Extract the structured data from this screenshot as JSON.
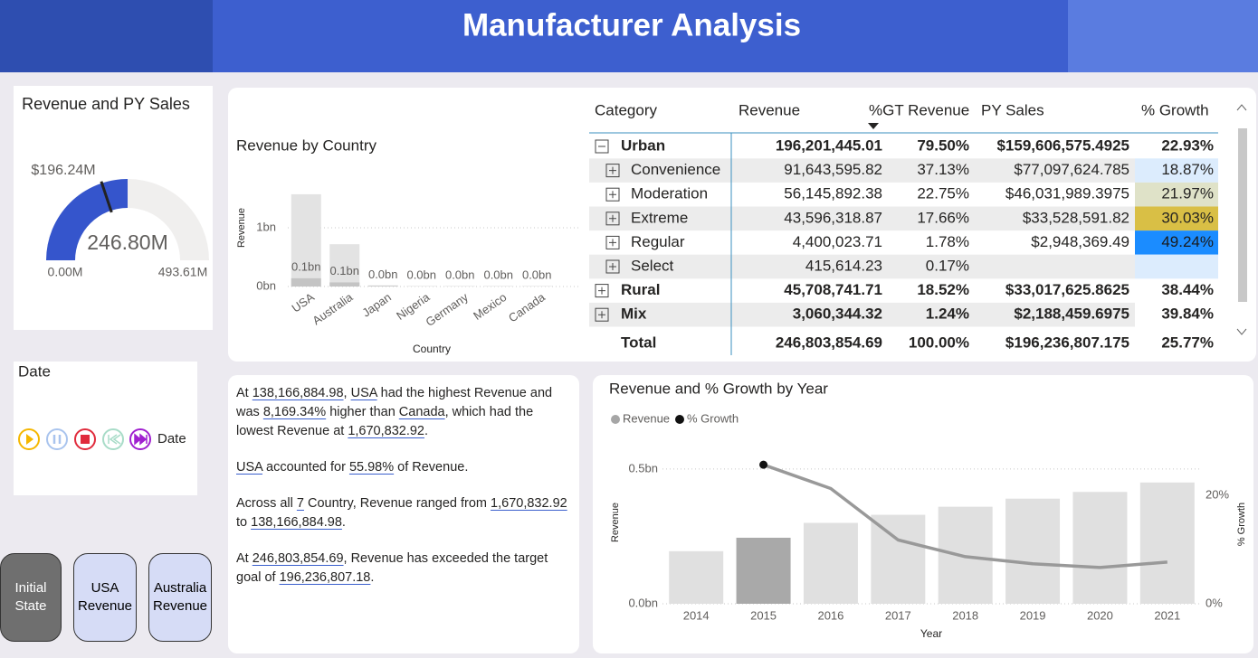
{
  "header": {
    "title": "Manufacturer Analysis"
  },
  "chart_data": [
    {
      "type": "gauge",
      "title": "Revenue and PY Sales",
      "value": 246.8,
      "value_label": "246.80M",
      "target": 196.24,
      "target_label": "$196.24M",
      "range": [
        {
          "value": 0,
          "label": "0.00M"
        },
        {
          "value": 493.61,
          "label": "493.61M"
        }
      ],
      "color": "#3555cc",
      "track_color": "#f0efee",
      "target_color": "#222222"
    },
    {
      "type": "bar",
      "title": "Revenue by Country",
      "x_label": "Country",
      "y_label": "Revenue",
      "categories": [
        "USA",
        "Australia",
        "Japan",
        "Nigeria",
        "Germany",
        "Mexico",
        "Canada"
      ],
      "overlap": true,
      "series": [
        {
          "color": "#e3e3e3",
          "values": [
            1.57,
            0.72,
            0.02,
            0.01,
            0.01,
            0.01,
            0.01
          ]
        },
        {
          "color": "#c4c4c4",
          "values": [
            0.14,
            0.07,
            0.01,
            0.0,
            0.0,
            0.0,
            0.0
          ],
          "value_labels": [
            "0.1bn",
            "0.1bn",
            "0.0bn",
            "0.0bn",
            "0.0bn",
            "0.0bn",
            "0.0bn"
          ]
        }
      ],
      "ylim": [
        0,
        1.8
      ],
      "yticks": [
        {
          "value": 0,
          "label": "0bn"
        },
        {
          "value": 1,
          "label": "1bn"
        }
      ],
      "grid": true
    },
    {
      "type": "combo",
      "title": "Revenue and % Growth by Year",
      "x_label": "Year",
      "y_label": "Revenue",
      "y2_label": "% Growth",
      "categories": [
        "2014",
        "2015",
        "2016",
        "2017",
        "2018",
        "2019",
        "2020",
        "2021"
      ],
      "series": [
        {
          "name": "Revenue",
          "type": "bar",
          "legend_color": "#a6a6a6",
          "colors": [
            "#e0e0e0",
            "#a9a9a9",
            "#e0e0e0",
            "#e0e0e0",
            "#e0e0e0",
            "#e0e0e0",
            "#e0e0e0",
            "#e0e0e0"
          ],
          "values": [
            0.195,
            0.245,
            0.3,
            0.33,
            0.36,
            0.39,
            0.415,
            0.45
          ]
        },
        {
          "name": "% Growth",
          "type": "line",
          "axis": "y2",
          "legend_color": "#111111",
          "color": "#999999",
          "marker_colors": [
            null,
            "#111111",
            null,
            null,
            null,
            null,
            null,
            null
          ],
          "values": [
            null,
            25.7,
            21.3,
            11.8,
            8.7,
            7.4,
            6.7,
            7.7
          ]
        }
      ],
      "ylim": [
        0,
        0.55
      ],
      "yticks": [
        {
          "value": 0,
          "label": "0.0bn"
        },
        {
          "value": 0.5,
          "label": "0.5bn"
        }
      ],
      "y2lim": [
        0,
        27.4
      ],
      "y2ticks": [
        {
          "value": 0,
          "label": "0%"
        },
        {
          "value": 20,
          "label": "20%"
        }
      ],
      "grid": true
    }
  ],
  "date_slicer": {
    "title": "Date",
    "label": "Date"
  },
  "buttons": [
    "Initial State",
    "USA Revenue",
    "Australia Revenue"
  ],
  "matrix": {
    "columns": [
      "Category",
      "Revenue",
      "%GT Revenue",
      "PY Sales",
      "% Growth"
    ],
    "rows": [
      {
        "level": 0,
        "expanded": true,
        "growth_color": null,
        "cells": [
          "Urban",
          "196,201,445.01",
          "79.50%",
          "$159,606,575.4925",
          "22.93%"
        ]
      },
      {
        "level": 1,
        "growth_color": "#dcecfd",
        "cells": [
          "Convenience",
          "91,643,595.82",
          "37.13%",
          "$77,097,624.785",
          "18.87%"
        ]
      },
      {
        "level": 1,
        "growth_color": "#dfe2c8",
        "cells": [
          "Moderation",
          "56,145,892.38",
          "22.75%",
          "$46,031,989.3975",
          "21.97%"
        ]
      },
      {
        "level": 1,
        "growth_color": "#d9bf45",
        "cells": [
          "Extreme",
          "43,596,318.87",
          "17.66%",
          "$33,528,591.82",
          "30.03%"
        ]
      },
      {
        "level": 1,
        "growth_color": "#1b8cff",
        "cells": [
          "Regular",
          "4,400,023.71",
          "1.78%",
          "$2,948,369.49",
          "49.24%"
        ]
      },
      {
        "level": 1,
        "growth_color": "#dcecfd",
        "cells": [
          "Select",
          "415,614.23",
          "0.17%",
          null,
          null
        ]
      },
      {
        "level": 0,
        "expanded": false,
        "growth_color": null,
        "cells": [
          "Rural",
          "45,708,741.71",
          "18.52%",
          "$33,017,625.8625",
          "38.44%"
        ]
      },
      {
        "level": 0,
        "expanded": false,
        "growth_color": null,
        "cells": [
          "Mix",
          "3,060,344.32",
          "1.24%",
          "$2,188,459.6975",
          "39.84%"
        ]
      }
    ],
    "total": [
      "Total",
      "246,803,854.69",
      "100.00%",
      "$196,236,807.175",
      "25.77%"
    ]
  },
  "narrative": {
    "paragraphs": [
      [
        "At ",
        {
          "u": "138,166,884.98"
        },
        ", ",
        {
          "u": "USA"
        },
        " had the highest Revenue and was ",
        {
          "u": "8,169.34%"
        },
        " higher than ",
        {
          "u": "Canada"
        },
        ", which had the lowest Revenue at ",
        {
          "u": "1,670,832.92"
        },
        "."
      ],
      [
        {
          "u": "USA"
        },
        " accounted for ",
        {
          "u": "55.98%"
        },
        " of Revenue."
      ],
      [
        "Across all ",
        {
          "u": "7"
        },
        " Country, Revenue ranged from ",
        {
          "u": "1,670,832.92"
        },
        " to ",
        {
          "u": "138,166,884.98"
        },
        "."
      ],
      [
        "At ",
        {
          "u": "246,803,854.69"
        },
        ", Revenue has exceeded the target goal of ",
        {
          "u": "196,236,807.18"
        },
        "."
      ]
    ]
  }
}
